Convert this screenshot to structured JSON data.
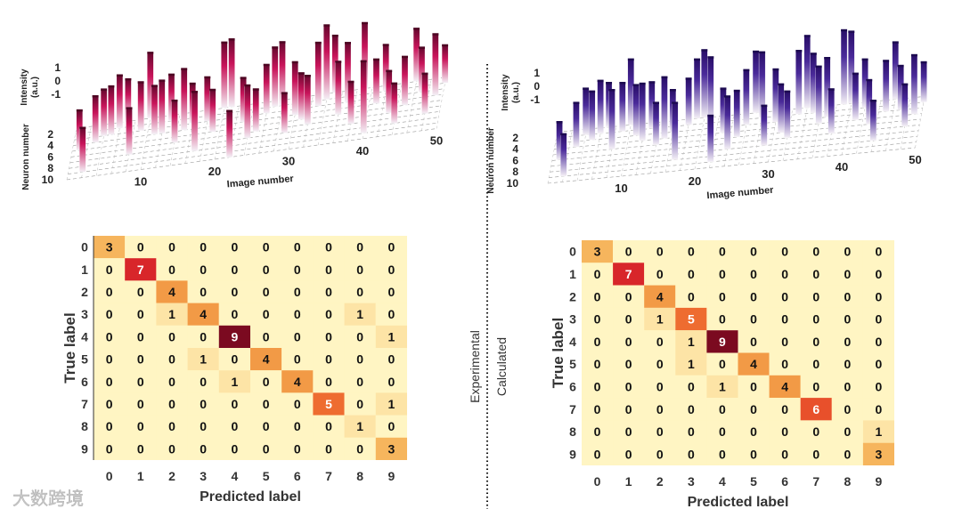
{
  "divider": {
    "left_label": "Experimental",
    "right_label": "Calculated"
  },
  "watermark": "大数跨境",
  "chart_data": [
    {
      "type": "bar3d",
      "panel": "experimental",
      "color": "#c8145a",
      "xlabel": "Image number",
      "ylabel": "Neuron number",
      "zlabel_line1": "Intensity",
      "zlabel_line2": "(a.u.)",
      "x_ticks": [
        "10",
        "20",
        "30",
        "40",
        "50"
      ],
      "y_ticks": [
        "2",
        "4",
        "6",
        "8",
        "10"
      ],
      "z_ticks": [
        "1",
        "0",
        "-1"
      ],
      "xlim": [
        0,
        50
      ],
      "ylim": [
        1,
        10
      ],
      "zlim": [
        -1,
        1
      ],
      "neurons": [
        5,
        9,
        4,
        3,
        3,
        2,
        1,
        7,
        3,
        1,
        4,
        4,
        2,
        6,
        4,
        3,
        8,
        3,
        5,
        1,
        1,
        10,
        4,
        7,
        6,
        3,
        2,
        2,
        7,
        4,
        5,
        6,
        3,
        2,
        1,
        5,
        3,
        7,
        1,
        9,
        4,
        2,
        6,
        8,
        5,
        1,
        3,
        7,
        4,
        2
      ],
      "intensity": [
        -0.6,
        -0.4,
        -0.3,
        -0.3,
        -0.2,
        0.0,
        -0.5,
        -0.3,
        -0.2,
        0.6,
        -0.2,
        0.0,
        -0.3,
        -0.5,
        0.4,
        -0.6,
        0.3,
        -0.4,
        -0.5,
        0.6,
        0.7,
        -0.3,
        -0.4,
        0.0,
        -0.5,
        -0.2,
        0.3,
        0.5,
        -0.6,
        0.0,
        -0.3,
        -0.2,
        0.5,
        1.0,
        0.2,
        0.0,
        0.3,
        -0.5,
        0.6,
        0.9,
        -0.4,
        -0.3,
        -0.5,
        -0.6,
        -0.2,
        0.0,
        -0.4,
        -0.6,
        0.4,
        -0.7
      ]
    },
    {
      "type": "bar3d",
      "panel": "calculated",
      "color": "#4a2a9a",
      "xlabel": "Image number",
      "ylabel": "Neuron number",
      "zlabel_line1": "Intensity",
      "zlabel_line2": "(a.u.)",
      "x_ticks": [
        "10",
        "20",
        "30",
        "40",
        "50"
      ],
      "y_ticks": [
        "2",
        "4",
        "6",
        "8",
        "10"
      ],
      "z_ticks": [
        "1",
        "0",
        "-1"
      ],
      "xlim": [
        0,
        50
      ],
      "ylim": [
        1,
        10
      ],
      "zlim": [
        -1,
        1
      ],
      "neurons": [
        6,
        9,
        4,
        2,
        3,
        2,
        1,
        5,
        2,
        1,
        3,
        4,
        2,
        5,
        4,
        3,
        8,
        2,
        1,
        1,
        2,
        9,
        4,
        7,
        5,
        3,
        1,
        2,
        7,
        3,
        5,
        6,
        2,
        1,
        2,
        4,
        3,
        6,
        1,
        1,
        4,
        2,
        5,
        8,
        3,
        1,
        3,
        6,
        4,
        2
      ],
      "intensity": [
        -0.7,
        -0.5,
        -0.4,
        -0.3,
        -0.2,
        0.0,
        -0.4,
        0.3,
        -0.2,
        0.6,
        -0.1,
        0.2,
        -0.3,
        -0.5,
        0.4,
        -0.5,
        0.2,
        -0.3,
        0.3,
        0.7,
        0.6,
        -0.3,
        -0.4,
        0.0,
        -0.3,
        0.1,
        0.4,
        0.6,
        -0.6,
        0.0,
        -0.2,
        -0.3,
        0.5,
        0.9,
        0.3,
        0.2,
        0.3,
        -0.4,
        1.0,
        0.9,
        -0.3,
        -0.2,
        -0.4,
        -0.6,
        -0.1,
        0.2,
        -0.4,
        -0.5,
        0.3,
        -0.6
      ]
    },
    {
      "type": "heatmap",
      "panel": "experimental",
      "xlabel": "Predicted label",
      "ylabel": "True label",
      "categories": [
        "0",
        "1",
        "2",
        "3",
        "4",
        "5",
        "6",
        "7",
        "8",
        "9"
      ],
      "matrix": [
        [
          3,
          0,
          0,
          0,
          0,
          0,
          0,
          0,
          0,
          0
        ],
        [
          0,
          7,
          0,
          0,
          0,
          0,
          0,
          0,
          0,
          0
        ],
        [
          0,
          0,
          4,
          0,
          0,
          0,
          0,
          0,
          0,
          0
        ],
        [
          0,
          0,
          1,
          4,
          0,
          0,
          0,
          0,
          1,
          0
        ],
        [
          0,
          0,
          0,
          0,
          9,
          0,
          0,
          0,
          0,
          1
        ],
        [
          0,
          0,
          0,
          1,
          0,
          4,
          0,
          0,
          0,
          0
        ],
        [
          0,
          0,
          0,
          0,
          1,
          0,
          4,
          0,
          0,
          0
        ],
        [
          0,
          0,
          0,
          0,
          0,
          0,
          0,
          5,
          0,
          1
        ],
        [
          0,
          0,
          0,
          0,
          0,
          0,
          0,
          0,
          1,
          0
        ],
        [
          0,
          0,
          0,
          0,
          0,
          0,
          0,
          0,
          0,
          3
        ]
      ]
    },
    {
      "type": "heatmap",
      "panel": "calculated",
      "xlabel": "Predicted label",
      "ylabel": "True label",
      "categories": [
        "0",
        "1",
        "2",
        "3",
        "4",
        "5",
        "6",
        "7",
        "8",
        "9"
      ],
      "matrix": [
        [
          3,
          0,
          0,
          0,
          0,
          0,
          0,
          0,
          0,
          0
        ],
        [
          0,
          7,
          0,
          0,
          0,
          0,
          0,
          0,
          0,
          0
        ],
        [
          0,
          0,
          4,
          0,
          0,
          0,
          0,
          0,
          0,
          0
        ],
        [
          0,
          0,
          1,
          5,
          0,
          0,
          0,
          0,
          0,
          0
        ],
        [
          0,
          0,
          0,
          1,
          9,
          0,
          0,
          0,
          0,
          0
        ],
        [
          0,
          0,
          0,
          1,
          0,
          4,
          0,
          0,
          0,
          0
        ],
        [
          0,
          0,
          0,
          0,
          1,
          0,
          4,
          0,
          0,
          0
        ],
        [
          0,
          0,
          0,
          0,
          0,
          0,
          0,
          6,
          0,
          0
        ],
        [
          0,
          0,
          0,
          0,
          0,
          0,
          0,
          0,
          0,
          1
        ],
        [
          0,
          0,
          0,
          0,
          0,
          0,
          0,
          0,
          0,
          3
        ]
      ]
    }
  ]
}
